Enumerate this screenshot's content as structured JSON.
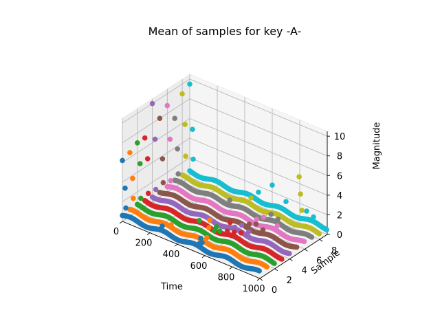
{
  "chart_data": {
    "type": "scatter",
    "projection": "3d",
    "title": "Mean of samples for key -A-",
    "xlabel": "Time",
    "ylabel": "Sample",
    "zlabel": "Magnitude",
    "xlim": [
      0,
      1000
    ],
    "ylim": [
      0,
      9
    ],
    "zlim": [
      0,
      10.5
    ],
    "xticks": [
      "0",
      "200",
      "400",
      "600",
      "800",
      "1000"
    ],
    "yticks": [
      "0",
      "2",
      "4",
      "6",
      "8"
    ],
    "zticks": [
      "0",
      "2",
      "4",
      "6",
      "8",
      "10"
    ],
    "grid": true,
    "series": [
      {
        "color": "#1f77b4",
        "y": 0,
        "baseline": 0.6,
        "points": [
          [
            0,
            6.2
          ],
          [
            20,
            3.5
          ],
          [
            25,
            1.5
          ],
          [
            290,
            1.2
          ],
          [
            560,
            1.0
          ],
          [
            570,
            1.6
          ],
          [
            580,
            1.2
          ]
        ]
      },
      {
        "color": "#ff7f0e",
        "y": 1,
        "baseline": 0.6,
        "points": [
          [
            0,
            6.5
          ],
          [
            20,
            4.0
          ],
          [
            25,
            2.0
          ],
          [
            300,
            0.9
          ],
          [
            560,
            1.1
          ],
          [
            575,
            2.2
          ],
          [
            580,
            3.0
          ]
        ]
      },
      {
        "color": "#2ca02c",
        "y": 2,
        "baseline": 0.6,
        "points": [
          [
            0,
            7.0
          ],
          [
            20,
            5.0
          ],
          [
            25,
            1.5
          ],
          [
            450,
            1.7
          ],
          [
            560,
            1.3
          ],
          [
            575,
            1.8
          ],
          [
            600,
            1.5
          ]
        ]
      },
      {
        "color": "#d62728",
        "y": 3,
        "baseline": 0.6,
        "points": [
          [
            0,
            7.0
          ],
          [
            20,
            5.0
          ],
          [
            25,
            1.5
          ],
          [
            600,
            1.0
          ],
          [
            620,
            2.0
          ],
          [
            650,
            1.2
          ],
          [
            700,
            1.4
          ]
        ]
      },
      {
        "color": "#9467bd",
        "y": 4,
        "baseline": 0.6,
        "points": [
          [
            0,
            10.0
          ],
          [
            20,
            6.5
          ],
          [
            25,
            1.4
          ],
          [
            600,
            0.9
          ],
          [
            650,
            1.4
          ],
          [
            700,
            1.0
          ]
        ]
      },
      {
        "color": "#8c564b",
        "y": 5,
        "baseline": 0.6,
        "points": [
          [
            0,
            8.0
          ],
          [
            20,
            4.0
          ],
          [
            25,
            1.6
          ],
          [
            650,
            1.0
          ],
          [
            700,
            1.3
          ],
          [
            750,
            1.0
          ]
        ]
      },
      {
        "color": "#e377c2",
        "y": 6,
        "baseline": 0.6,
        "points": [
          [
            0,
            8.8
          ],
          [
            20,
            5.5
          ],
          [
            25,
            1.3
          ],
          [
            650,
            1.0
          ],
          [
            700,
            1.5
          ],
          [
            800,
            1.2
          ]
        ]
      },
      {
        "color": "#7f7f7f",
        "y": 7,
        "baseline": 0.6,
        "points": [
          [
            0,
            7.0
          ],
          [
            20,
            4.0
          ],
          [
            25,
            1.5
          ],
          [
            400,
            1.0
          ],
          [
            700,
            1.3
          ],
          [
            750,
            1.1
          ]
        ]
      },
      {
        "color": "#bcbd22",
        "y": 8,
        "baseline": 0.6,
        "points": [
          [
            0,
            9.0
          ],
          [
            20,
            6.0
          ],
          [
            25,
            2.8
          ],
          [
            500,
            1.3
          ],
          [
            850,
            5.5
          ],
          [
            860,
            3.8
          ],
          [
            870,
            2.2
          ]
        ]
      },
      {
        "color": "#17becf",
        "y": 9,
        "baseline": 0.6,
        "points": [
          [
            0,
            9.5
          ],
          [
            20,
            5.0
          ],
          [
            25,
            2.0
          ],
          [
            500,
            1.4
          ],
          [
            600,
            2.7
          ],
          [
            700,
            1.6
          ],
          [
            850,
            1.5
          ],
          [
            900,
            1.2
          ]
        ]
      }
    ]
  }
}
